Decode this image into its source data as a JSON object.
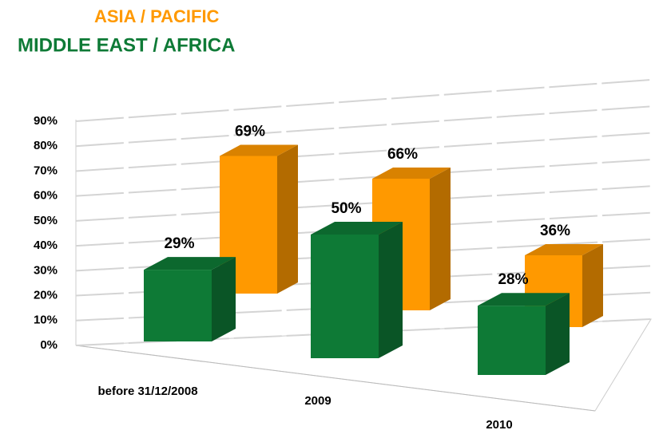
{
  "chart_data": {
    "type": "bar3d",
    "categories": [
      "before 31/12/2008",
      "2009",
      "2010"
    ],
    "series": [
      {
        "name": "ASIA / PACIFIC",
        "color": "#ff9900",
        "values": [
          69,
          66,
          36
        ],
        "value_labels": [
          "69%",
          "66%",
          "36%"
        ]
      },
      {
        "name": "MIDDLE EAST / AFRICA",
        "color": "#0e7a36",
        "values": [
          29,
          50,
          28
        ],
        "value_labels": [
          "29%",
          "50%",
          "28%"
        ]
      }
    ],
    "ylim": [
      0,
      90
    ],
    "yticks": [
      {
        "value": 0,
        "label": "0%"
      },
      {
        "value": 10,
        "label": "10%"
      },
      {
        "value": 20,
        "label": "20%"
      },
      {
        "value": 30,
        "label": "30%"
      },
      {
        "value": 40,
        "label": "40%"
      },
      {
        "value": 50,
        "label": "50%"
      },
      {
        "value": 60,
        "label": "60%"
      },
      {
        "value": 70,
        "label": "70%"
      },
      {
        "value": 80,
        "label": "80%"
      },
      {
        "value": 90,
        "label": "90%"
      }
    ],
    "grid": true
  }
}
